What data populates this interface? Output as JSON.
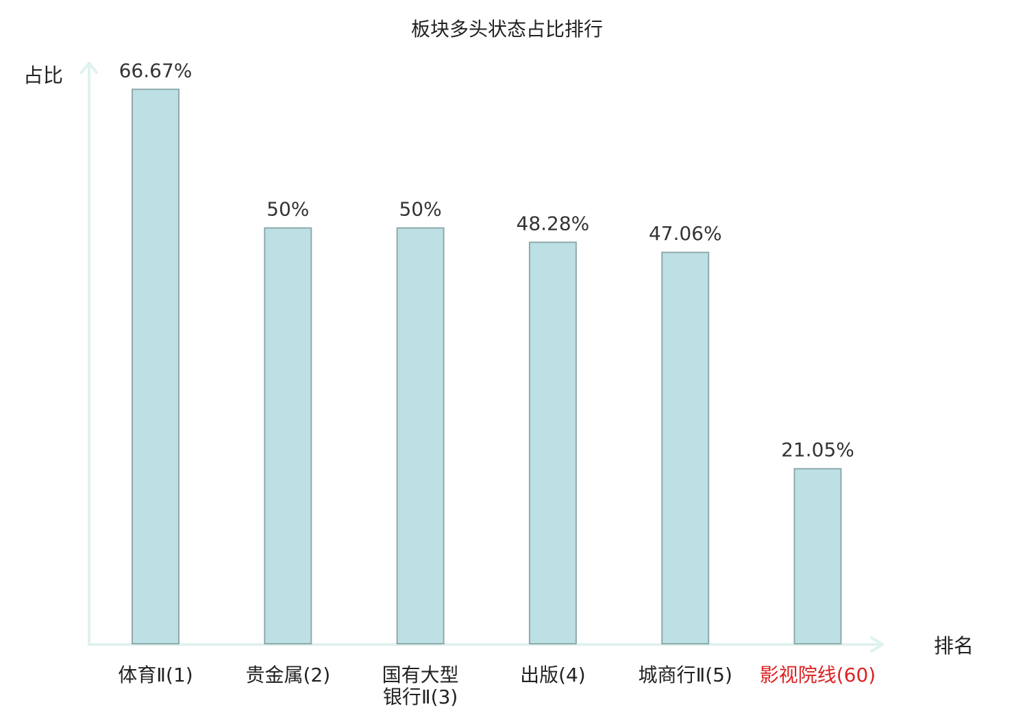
{
  "chart_data": {
    "type": "bar",
    "title": "板块多头状态占比排行",
    "ylabel": "占比",
    "xlabel": "排名",
    "ylim": [
      0,
      70
    ],
    "grid": false,
    "legend": "none",
    "categories": [
      {
        "name": "体育Ⅱ",
        "rank": "(1)",
        "lines": [
          "体育Ⅱ(1)"
        ],
        "highlight": false
      },
      {
        "name": "贵金属",
        "rank": "(2)",
        "lines": [
          "贵金属(2)"
        ],
        "highlight": false
      },
      {
        "name": "国有大型银行Ⅱ",
        "rank": "(3)",
        "lines": [
          "国有大型",
          "银行Ⅱ(3)"
        ],
        "highlight": false
      },
      {
        "name": "出版",
        "rank": "(4)",
        "lines": [
          "出版(4)"
        ],
        "highlight": false
      },
      {
        "name": "城商行Ⅱ",
        "rank": "(5)",
        "lines": [
          "城商行Ⅱ(5)"
        ],
        "highlight": false
      },
      {
        "name": "影视院线",
        "rank": "(60)",
        "lines": [
          "影视院线(60)"
        ],
        "highlight": true
      }
    ],
    "values": [
      66.67,
      50,
      50,
      48.28,
      47.06,
      21.05
    ],
    "value_labels": [
      "66.67%",
      "50%",
      "50%",
      "48.28%",
      "47.06%",
      "21.05%"
    ],
    "colors": {
      "bar_fill": "#bce0e3",
      "bar_stroke": "#8fa9ab",
      "axis": "#dff2ef",
      "highlight_label": "#dd2222"
    }
  }
}
